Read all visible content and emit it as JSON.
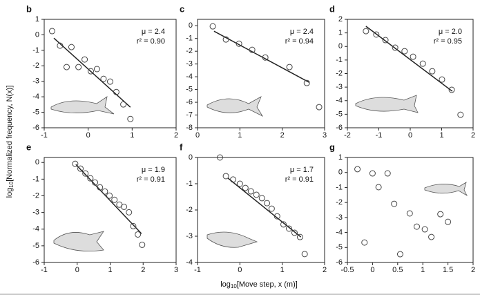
{
  "y_label": {
    "log": "log",
    "sub": "10",
    "rest": "[Normalized frequency, N(x)]"
  },
  "x_label": {
    "log": "log",
    "sub": "10",
    "rest": "[Move step, x (m)]"
  },
  "chart_data": [
    {
      "type": "scatter",
      "title": "b",
      "marker_color": "#444",
      "x": [
        -0.82,
        -0.64,
        -0.49,
        -0.38,
        -0.22,
        -0.08,
        0.06,
        0.2,
        0.35,
        0.5,
        0.64,
        0.8,
        0.96
      ],
      "y": [
        0.24,
        -0.7,
        -2.08,
        -0.79,
        -2.08,
        -1.59,
        -2.35,
        -2.21,
        -2.84,
        -3.02,
        -3.69,
        -4.49,
        -5.43
      ],
      "fit": {
        "x": [
          -0.78,
          0.96
        ],
        "y": [
          -0.21,
          -4.67
        ]
      },
      "annotation": [
        "μ = 2.4",
        "r² = 0.90"
      ],
      "xlim": [
        -1,
        2
      ],
      "ylim": [
        -6,
        1
      ],
      "xticks": [
        -1,
        0,
        1,
        2
      ],
      "yticks": [
        -6,
        -5,
        -4,
        -3,
        -2,
        -1,
        0,
        1
      ]
    },
    {
      "type": "scatter",
      "title": "c",
      "marker_color": "#444",
      "x": [
        0.36,
        0.67,
        0.98,
        1.29,
        1.6,
        2.17,
        2.58,
        2.87
      ],
      "y": [
        -0.05,
        -1.08,
        -1.41,
        -1.89,
        -2.49,
        -3.24,
        -4.49,
        -6.38
      ],
      "fit": {
        "x": [
          0.39,
          2.63
        ],
        "y": [
          -0.43,
          -4.43
        ]
      },
      "annotation": [
        "μ = 2.4",
        "r² = 0.94"
      ],
      "xlim": [
        0,
        3
      ],
      "ylim": [
        -8,
        0.5
      ],
      "xticks": [
        0,
        1,
        2,
        3
      ],
      "yticks": [
        -8,
        -7,
        -6,
        -5,
        -4,
        -3,
        -2,
        -1,
        0
      ]
    },
    {
      "type": "scatter",
      "title": "d",
      "marker_color": "#444",
      "x": [
        -1.41,
        -1.08,
        -0.79,
        -0.48,
        -0.18,
        0.09,
        0.4,
        0.7,
        1.01,
        1.32,
        1.6
      ],
      "y": [
        1.13,
        0.88,
        0.47,
        -0.09,
        -0.35,
        -0.76,
        -1.27,
        -1.83,
        -2.44,
        -3.2,
        -5.04
      ],
      "fit": {
        "x": [
          -1.41,
          1.34
        ],
        "y": [
          1.49,
          -3.31
        ]
      },
      "annotation": [
        "μ = 2.0",
        "r² = 0.95"
      ],
      "xlim": [
        -2,
        2
      ],
      "ylim": [
        -6,
        2
      ],
      "xticks": [
        -2,
        -1,
        0,
        1,
        2
      ],
      "yticks": [
        -6,
        -5,
        -4,
        -3,
        -2,
        -1,
        0,
        1,
        2
      ]
    },
    {
      "type": "scatter",
      "title": "e",
      "marker_color": "#444",
      "x": [
        -0.06,
        0.1,
        0.25,
        0.4,
        0.54,
        0.69,
        0.84,
        0.98,
        1.13,
        1.28,
        1.42,
        1.57,
        1.7,
        1.84,
        1.97
      ],
      "y": [
        -0.08,
        -0.37,
        -0.66,
        -0.95,
        -1.2,
        -1.49,
        -1.74,
        -1.99,
        -2.24,
        -2.53,
        -2.66,
        -2.99,
        -3.82,
        -4.32,
        -4.94
      ],
      "fit": {
        "x": [
          -0.04,
          1.95
        ],
        "y": [
          -0.12,
          -4.27
        ]
      },
      "annotation": [
        "μ = 1.9",
        "r² = 0.91"
      ],
      "xlim": [
        -1,
        3
      ],
      "ylim": [
        -6,
        0.3
      ],
      "xticks": [
        -1,
        0,
        1,
        2,
        3
      ],
      "yticks": [
        -6,
        -5,
        -4,
        -3,
        -2,
        -1,
        0
      ]
    },
    {
      "type": "scatter",
      "title": "f",
      "marker_color": "#444",
      "x": [
        -0.47,
        -0.33,
        -0.16,
        0,
        0.13,
        0.26,
        0.39,
        0.52,
        0.64,
        0.75,
        0.88,
        1.03,
        1.16,
        1.29,
        1.42,
        1.53
      ],
      "y": [
        0,
        -0.71,
        -0.84,
        -1.0,
        -1.16,
        -1.29,
        -1.42,
        -1.55,
        -1.74,
        -1.95,
        -2.24,
        -2.55,
        -2.71,
        -2.87,
        -3.03,
        -3.68
      ],
      "fit": {
        "x": [
          -0.28,
          1.44
        ],
        "y": [
          -0.79,
          -3.03
        ]
      },
      "annotation": [
        "μ = 1.7",
        "r² = 0.91"
      ],
      "xlim": [
        -1,
        2
      ],
      "ylim": [
        -4,
        0
      ],
      "xticks": [
        -1,
        0,
        1,
        2
      ],
      "yticks": [
        -4,
        -3,
        -2,
        -1,
        0
      ]
    },
    {
      "type": "scatter",
      "title": "g",
      "marker_color": "#444",
      "x": [
        -0.3,
        -0.16,
        0,
        0.12,
        0.3,
        0.43,
        0.55,
        0.74,
        0.88,
        1.04,
        1.17,
        1.35,
        1.5
      ],
      "y": [
        0.22,
        -4.67,
        -0.06,
        -0.98,
        -0.06,
        -2.09,
        -5.45,
        -2.73,
        -3.61,
        -3.79,
        -4.3,
        -2.78,
        -3.29
      ],
      "xlim": [
        -0.5,
        2
      ],
      "ylim": [
        -6,
        1
      ],
      "xticks": [
        -0.5,
        0,
        0.5,
        1,
        1.5,
        2
      ],
      "yticks": [
        -6,
        -5,
        -4,
        -3,
        -2,
        -1,
        0,
        1
      ]
    }
  ]
}
